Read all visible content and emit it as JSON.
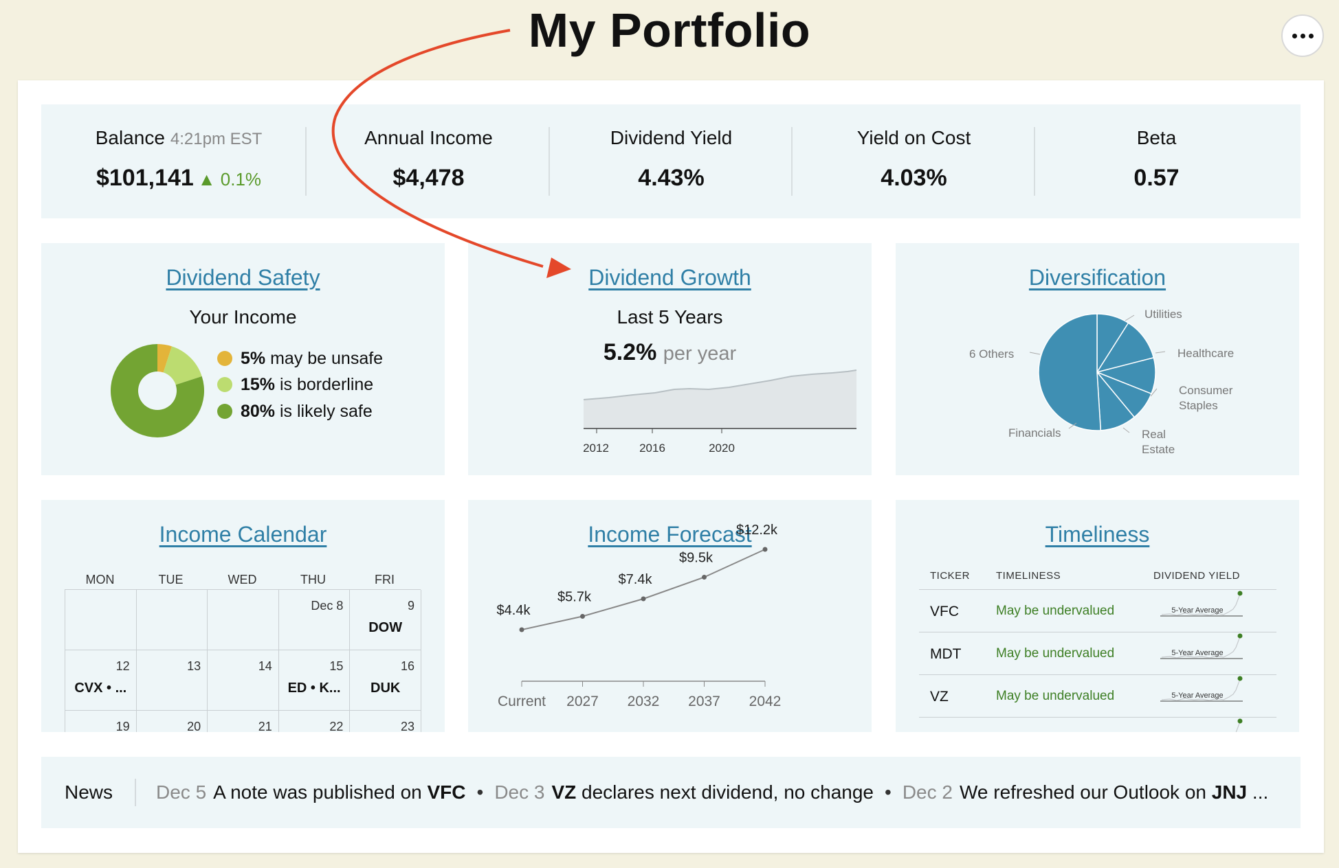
{
  "header": {
    "title": "My Portfolio",
    "more_label": "More options"
  },
  "stats": {
    "balance": {
      "label": "Balance",
      "time": "4:21pm EST",
      "value": "$101,141",
      "change": "▲ 0.1%"
    },
    "annual_income": {
      "label": "Annual Income",
      "value": "$4,478"
    },
    "dividend_yield": {
      "label": "Dividend Yield",
      "value": "4.43%"
    },
    "yield_on_cost": {
      "label": "Yield on Cost",
      "value": "4.03%"
    },
    "beta": {
      "label": "Beta",
      "value": "0.57"
    }
  },
  "safety": {
    "title": "Dividend Safety",
    "subtitle": "Your Income",
    "items": [
      {
        "pct": "5%",
        "text": "may be unsafe",
        "value": 5,
        "color": "#e3b43a"
      },
      {
        "pct": "15%",
        "text": "is borderline",
        "value": 15,
        "color": "#bcdc70"
      },
      {
        "pct": "80%",
        "text": "is likely safe",
        "value": 80,
        "color": "#73a433"
      }
    ]
  },
  "growth": {
    "title": "Dividend Growth",
    "subtitle": "Last 5 Years",
    "rate": "5.2%",
    "rate_suffix": "per year",
    "ticks": [
      "2012",
      "2016",
      "2020"
    ]
  },
  "diversification": {
    "title": "Diversification",
    "color": "#3f8fb3",
    "slices": [
      {
        "label": "Utilities",
        "value": 9
      },
      {
        "label": "Healthcare",
        "value": 12
      },
      {
        "label": "Consumer Staples",
        "value": 10
      },
      {
        "label": "Real Estate",
        "value": 8
      },
      {
        "label": "Financials",
        "value": 10
      },
      {
        "label": "6 Others",
        "value": 51
      }
    ],
    "label_lines": {
      "utilities": "Utilities",
      "healthcare": "Healthcare",
      "consumer_1": "Consumer",
      "consumer_2": "Staples",
      "real_1": "Real",
      "real_2": "Estate",
      "financials": "Financials",
      "others": "6 Others"
    }
  },
  "calendar": {
    "title": "Income Calendar",
    "days": [
      "MON",
      "TUE",
      "WED",
      "THU",
      "FRI"
    ],
    "rows": [
      [
        {
          "num": "",
          "ticker": ""
        },
        {
          "num": "",
          "ticker": ""
        },
        {
          "num": "",
          "ticker": ""
        },
        {
          "num": "Dec 8",
          "ticker": ""
        },
        {
          "num": "9",
          "ticker": "DOW"
        }
      ],
      [
        {
          "num": "12",
          "ticker": "CVX • ..."
        },
        {
          "num": "13",
          "ticker": ""
        },
        {
          "num": "14",
          "ticker": ""
        },
        {
          "num": "15",
          "ticker": "ED • K..."
        },
        {
          "num": "16",
          "ticker": "DUK"
        }
      ],
      [
        {
          "num": "19",
          "ticker": ""
        },
        {
          "num": "20",
          "ticker": ""
        },
        {
          "num": "21",
          "ticker": ""
        },
        {
          "num": "22",
          "ticker": ""
        },
        {
          "num": "23",
          "ticker": ""
        }
      ]
    ]
  },
  "forecast": {
    "title": "Income Forecast",
    "chart_data": {
      "type": "line",
      "categories": [
        "Current",
        "2027",
        "2032",
        "2037",
        "2042"
      ],
      "values": [
        4.4,
        5.7,
        7.4,
        9.5,
        12.2
      ],
      "labels": [
        "$4.4k",
        "$5.7k",
        "$7.4k",
        "$9.5k",
        "$12.2k"
      ],
      "ylim": [
        0,
        14
      ]
    }
  },
  "timeliness": {
    "title": "Timeliness",
    "headers": {
      "ticker": "TICKER",
      "timeliness": "TIMELINESS",
      "yield": "DIVIDEND YIELD"
    },
    "spark_label": "5-Year Average",
    "rows": [
      {
        "ticker": "VFC",
        "status": "May be undervalued"
      },
      {
        "ticker": "MDT",
        "status": "May be undervalued"
      },
      {
        "ticker": "VZ",
        "status": "May be undervalued"
      }
    ]
  },
  "news": {
    "label": "News",
    "items": [
      {
        "date": "Dec 5",
        "pre": "A note was published on ",
        "bold": "VFC",
        "post": ""
      },
      {
        "date": "Dec 3",
        "pre": "",
        "bold": "VZ",
        "post": " declares next dividend, no change"
      },
      {
        "date": "Dec 2",
        "pre": "We refreshed our Outlook on ",
        "bold": "JNJ",
        "post": " ..."
      }
    ],
    "separator": "•"
  }
}
